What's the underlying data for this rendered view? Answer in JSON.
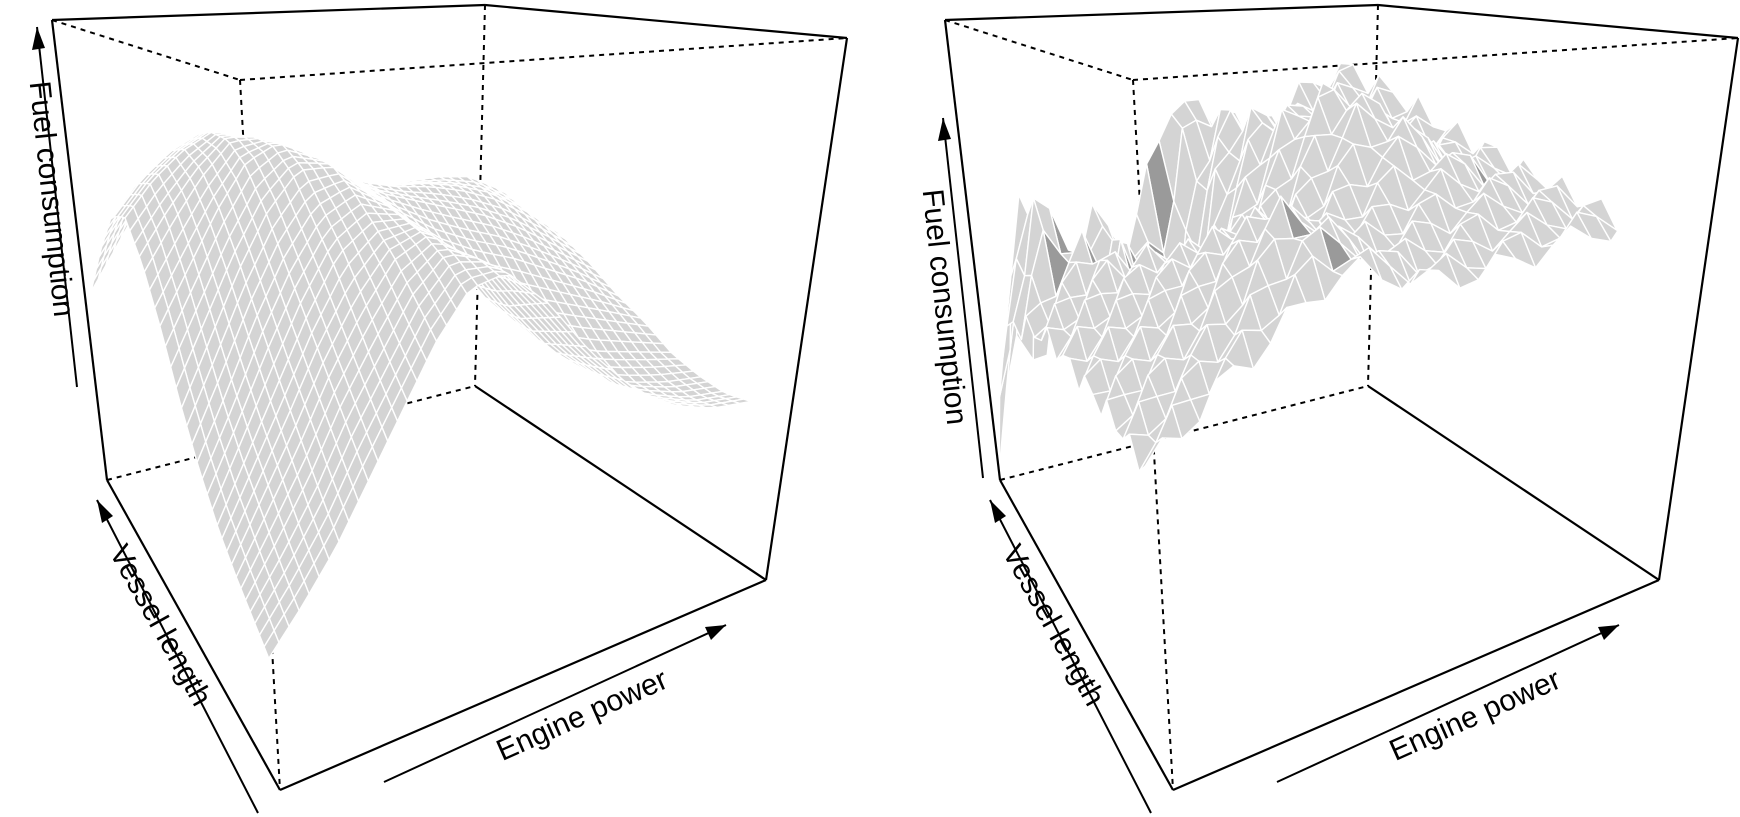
{
  "colors": {
    "surface_fill": "#d4d4d4",
    "surface_dark": "#9a9a9a",
    "mesh_lines": "#ffffff",
    "box_lines": "#000000",
    "background": "#ffffff"
  },
  "chart_data": [
    {
      "type": "surface3d",
      "title": "",
      "xlabel": "Engine power",
      "ylabel": "Vessel length",
      "zlabel": "Fuel consumption",
      "grid": false,
      "mesh": "smooth",
      "surface_heights": [
        [
          0.4,
          0.48,
          0.56,
          0.6,
          0.55,
          0.42,
          0.34,
          0.3,
          0.28,
          0.3,
          0.33,
          0.35,
          0.33,
          0.28
        ],
        [
          0.55,
          0.62,
          0.68,
          0.7,
          0.66,
          0.55,
          0.47,
          0.42,
          0.4,
          0.42,
          0.45,
          0.46,
          0.42,
          0.36
        ],
        [
          0.68,
          0.74,
          0.78,
          0.8,
          0.77,
          0.68,
          0.6,
          0.55,
          0.53,
          0.55,
          0.56,
          0.55,
          0.5,
          0.44
        ],
        [
          0.74,
          0.8,
          0.84,
          0.86,
          0.83,
          0.76,
          0.7,
          0.65,
          0.63,
          0.63,
          0.62,
          0.6,
          0.55,
          0.48
        ],
        [
          0.7,
          0.78,
          0.85,
          0.9,
          0.88,
          0.82,
          0.76,
          0.72,
          0.69,
          0.67,
          0.64,
          0.6,
          0.54,
          0.47
        ],
        [
          0.62,
          0.72,
          0.82,
          0.9,
          0.92,
          0.87,
          0.8,
          0.74,
          0.7,
          0.66,
          0.62,
          0.57,
          0.51,
          0.45
        ],
        [
          0.52,
          0.64,
          0.76,
          0.86,
          0.92,
          0.9,
          0.82,
          0.74,
          0.67,
          0.62,
          0.58,
          0.53,
          0.48,
          0.42
        ],
        [
          0.44,
          0.56,
          0.69,
          0.8,
          0.88,
          0.9,
          0.84,
          0.74,
          0.64,
          0.57,
          0.52,
          0.48,
          0.44,
          0.4
        ],
        [
          0.38,
          0.5,
          0.62,
          0.74,
          0.84,
          0.88,
          0.86,
          0.76,
          0.63,
          0.53,
          0.47,
          0.43,
          0.4,
          0.37
        ],
        [
          0.34,
          0.45,
          0.56,
          0.68,
          0.78,
          0.86,
          0.88,
          0.8,
          0.66,
          0.54,
          0.46,
          0.41,
          0.38,
          0.36
        ],
        [
          0.31,
          0.4,
          0.5,
          0.62,
          0.72,
          0.82,
          0.88,
          0.84,
          0.71,
          0.58,
          0.48,
          0.42,
          0.38,
          0.36
        ],
        [
          0.28,
          0.36,
          0.45,
          0.56,
          0.67,
          0.78,
          0.86,
          0.86,
          0.76,
          0.62,
          0.51,
          0.44,
          0.4,
          0.38
        ]
      ]
    },
    {
      "type": "surface3d",
      "title": "",
      "xlabel": "Engine power",
      "ylabel": "Vessel length",
      "zlabel": "Fuel consumption",
      "grid": false,
      "mesh": "rough",
      "surface_heights": [
        [
          0.02,
          0.3,
          0.22,
          0.4,
          0.5,
          0.42,
          0.55,
          0.7,
          0.66,
          0.6,
          0.58,
          0.62,
          0.66,
          0.68
        ],
        [
          0.35,
          0.62,
          0.45,
          0.3,
          0.52,
          0.4,
          0.32,
          0.58,
          0.7,
          0.64,
          0.6,
          0.63,
          0.67,
          0.69
        ],
        [
          0.45,
          0.7,
          0.58,
          0.36,
          0.48,
          0.3,
          0.38,
          0.62,
          0.74,
          0.7,
          0.64,
          0.64,
          0.68,
          0.7
        ],
        [
          0.5,
          0.58,
          0.64,
          0.52,
          0.46,
          0.42,
          0.5,
          0.66,
          0.78,
          0.76,
          0.7,
          0.66,
          0.68,
          0.7
        ],
        [
          0.55,
          0.6,
          0.66,
          0.62,
          0.58,
          0.56,
          0.6,
          0.7,
          0.82,
          0.84,
          0.78,
          0.7,
          0.68,
          0.7
        ],
        [
          0.58,
          0.63,
          0.68,
          0.7,
          0.68,
          0.64,
          0.66,
          0.74,
          0.84,
          0.92,
          0.86,
          0.74,
          0.7,
          0.71
        ],
        [
          0.6,
          0.65,
          0.7,
          0.74,
          0.75,
          0.72,
          0.7,
          0.76,
          0.84,
          0.9,
          0.88,
          0.78,
          0.72,
          0.72
        ],
        [
          0.62,
          0.67,
          0.72,
          0.78,
          0.82,
          0.82,
          0.76,
          0.78,
          0.82,
          0.86,
          0.86,
          0.8,
          0.74,
          0.72
        ],
        [
          0.64,
          0.69,
          0.74,
          0.8,
          0.86,
          0.9,
          0.84,
          0.8,
          0.8,
          0.82,
          0.82,
          0.8,
          0.76,
          0.73
        ],
        [
          0.66,
          0.71,
          0.76,
          0.82,
          0.9,
          0.96,
          0.9,
          0.82,
          0.8,
          0.8,
          0.8,
          0.79,
          0.77,
          0.74
        ],
        [
          0.67,
          0.72,
          0.77,
          0.82,
          0.88,
          0.94,
          0.92,
          0.84,
          0.8,
          0.79,
          0.79,
          0.78,
          0.77,
          0.75
        ],
        [
          0.68,
          0.73,
          0.78,
          0.82,
          0.86,
          0.9,
          0.9,
          0.85,
          0.81,
          0.79,
          0.78,
          0.78,
          0.77,
          0.76
        ]
      ]
    }
  ]
}
